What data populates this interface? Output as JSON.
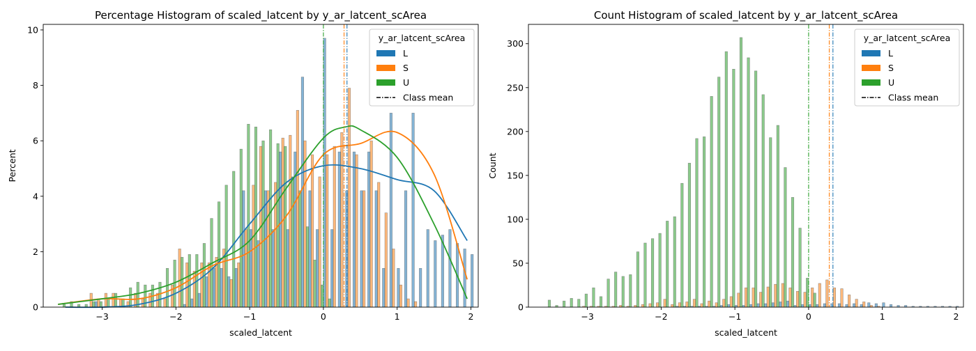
{
  "colors": {
    "L": "#1f77b4",
    "S": "#ff7f0e",
    "U": "#2ca02c"
  },
  "chart_data": [
    {
      "type": "bar",
      "title": "Percentage Histogram of scaled_latcent by y_ar_latcent_scArea",
      "xlabel": "scaled_latcent",
      "ylabel": "Percent",
      "xlim": [
        -3.8,
        2.1
      ],
      "ylim": [
        0,
        10.2
      ],
      "xticks": [
        -3,
        -2,
        -1,
        0,
        1,
        2
      ],
      "yticks": [
        0,
        2,
        4,
        6,
        8,
        10
      ],
      "legend": {
        "title": "y_ar_latcent_scArea",
        "entries": [
          "L",
          "S",
          "U"
        ],
        "mean_label": "Class mean",
        "position": "top-right"
      },
      "bin_start": -3.6,
      "bin_width": 0.1,
      "series": [
        {
          "name": "L",
          "values": [
            0,
            0,
            0,
            0,
            0,
            0.2,
            0,
            0,
            0,
            0,
            0,
            0,
            0,
            0,
            0,
            0,
            0,
            0.1,
            0.3,
            0.5,
            1.1,
            1.4,
            1.4,
            1.1,
            1.4,
            4.2,
            2.8,
            2.4,
            4.2,
            2.8,
            5.6,
            2.8,
            5.6,
            8.3,
            4.2,
            2.8,
            9.7,
            2.8,
            5.6,
            4.2,
            5.6,
            4.2,
            5.6,
            4.2,
            1.4,
            7.0,
            1.4,
            4.2,
            7.0,
            1.4,
            2.8,
            2.4,
            2.6,
            2.8,
            2.3,
            2.1,
            1.9
          ]
        },
        {
          "name": "S",
          "values": [
            0,
            0,
            0,
            0,
            0.5,
            0.3,
            0.5,
            0.5,
            0.3,
            0.2,
            0.5,
            0.3,
            0.5,
            0.5,
            0.3,
            0.8,
            2.1,
            1.6,
            1.3,
            1.6,
            1.6,
            1.8,
            2.1,
            1.0,
            1.6,
            2.8,
            4.4,
            5.8,
            4.2,
            4.5,
            6.1,
            6.2,
            7.1,
            6.0,
            5.5,
            4.7,
            5.5,
            5.8,
            6.3,
            7.9,
            5.5,
            4.2,
            6.0,
            4.5,
            3.4,
            2.1,
            0.8,
            0.3,
            0.2,
            0,
            0,
            0,
            0,
            0,
            0,
            0,
            0
          ]
        },
        {
          "name": "U",
          "values": [
            0.1,
            0.2,
            0.1,
            0.1,
            0.2,
            0.2,
            0.3,
            0.5,
            0.3,
            0.7,
            0.9,
            0.8,
            0.8,
            0.9,
            1.4,
            1.7,
            1.8,
            1.9,
            1.9,
            2.3,
            3.2,
            3.8,
            4.4,
            4.9,
            5.7,
            6.6,
            6.5,
            6.0,
            6.4,
            5.9,
            5.8,
            4.7,
            4.2,
            2.9,
            1.7,
            0.8,
            0.3,
            0,
            0,
            0,
            0,
            0,
            0,
            0,
            0,
            0,
            0,
            0,
            0,
            0,
            0,
            0,
            0,
            0,
            0,
            0,
            0
          ]
        }
      ],
      "kde": [
        {
          "name": "L",
          "x": [
            -3.5,
            -3.0,
            -2.5,
            -2.0,
            -1.5,
            -1.0,
            -0.5,
            0.0,
            0.5,
            1.0,
            1.5,
            1.95
          ],
          "y": [
            0,
            0,
            0.1,
            0.5,
            1.4,
            3.0,
            4.5,
            5.1,
            5.0,
            4.6,
            4.2,
            2.4
          ]
        },
        {
          "name": "S",
          "x": [
            -3.6,
            -3.0,
            -2.5,
            -2.0,
            -1.5,
            -1.0,
            -0.5,
            0.0,
            0.5,
            1.0,
            1.5,
            1.95
          ],
          "y": [
            0.1,
            0.3,
            0.3,
            0.7,
            1.5,
            2.0,
            3.3,
            5.5,
            5.9,
            6.3,
            4.8,
            1.0
          ]
        },
        {
          "name": "U",
          "x": [
            -3.6,
            -3.0,
            -2.5,
            -2.0,
            -1.5,
            -1.0,
            -0.5,
            0.0,
            0.3,
            0.5,
            1.0,
            1.5,
            1.95
          ],
          "y": [
            0.1,
            0.3,
            0.5,
            0.9,
            1.6,
            2.4,
            4.3,
            6.1,
            6.5,
            6.4,
            5.4,
            3.0,
            0.3
          ]
        }
      ],
      "means": {
        "L": 0.32,
        "S": 0.28,
        "U": 0.0
      }
    },
    {
      "type": "bar",
      "title": "Count Histogram of scaled_latcent by y_ar_latcent_scArea",
      "xlabel": "scaled_latcent",
      "ylabel": "Count",
      "xlim": [
        -3.8,
        2.1
      ],
      "ylim": [
        0,
        322
      ],
      "xticks": [
        -3,
        -2,
        -1,
        0,
        1,
        2
      ],
      "yticks": [
        0,
        50,
        100,
        150,
        200,
        250,
        300
      ],
      "legend": {
        "title": "y_ar_latcent_scArea",
        "entries": [
          "L",
          "S",
          "U"
        ],
        "mean_label": "Class mean",
        "position": "top-right"
      },
      "bin_start": -3.6,
      "bin_width": 0.1,
      "series": [
        {
          "name": "L",
          "values": [
            0,
            0,
            0,
            0,
            0,
            0,
            0,
            0,
            0,
            0,
            0,
            0,
            0,
            0,
            0,
            0,
            0,
            0,
            1,
            1,
            1,
            1,
            1,
            1,
            2,
            3,
            2,
            2,
            3,
            4,
            4,
            5,
            6,
            7,
            2,
            3,
            3,
            3,
            4,
            4,
            4,
            3,
            4,
            3,
            5,
            4,
            5,
            3,
            2,
            2,
            1,
            1,
            1,
            1,
            1,
            1,
            1
          ]
        },
        {
          "name": "S",
          "values": [
            0,
            0,
            0,
            0,
            0,
            1,
            1,
            1,
            1,
            1,
            2,
            1,
            2,
            3,
            4,
            5,
            9,
            3,
            5,
            6,
            9,
            4,
            7,
            5,
            9,
            12,
            16,
            22,
            22,
            17,
            23,
            26,
            27,
            22,
            18,
            17,
            22,
            27,
            31,
            22,
            21,
            14,
            9,
            6,
            2,
            1,
            0,
            0,
            0,
            0,
            0,
            0,
            0,
            0,
            0,
            0,
            0
          ]
        },
        {
          "name": "U",
          "values": [
            8,
            2,
            7,
            10,
            9,
            15,
            22,
            12,
            32,
            40,
            35,
            37,
            63,
            73,
            78,
            84,
            98,
            103,
            141,
            164,
            192,
            194,
            240,
            262,
            291,
            271,
            307,
            284,
            269,
            242,
            193,
            207,
            159,
            125,
            90,
            33,
            16,
            0,
            0,
            0,
            0,
            0,
            0,
            0,
            0,
            0,
            0,
            0,
            0,
            0,
            0,
            0,
            0,
            0,
            0,
            0,
            0
          ]
        }
      ],
      "kde": [],
      "means": {
        "L": 0.33,
        "S": 0.28,
        "U": 0.0
      }
    }
  ]
}
